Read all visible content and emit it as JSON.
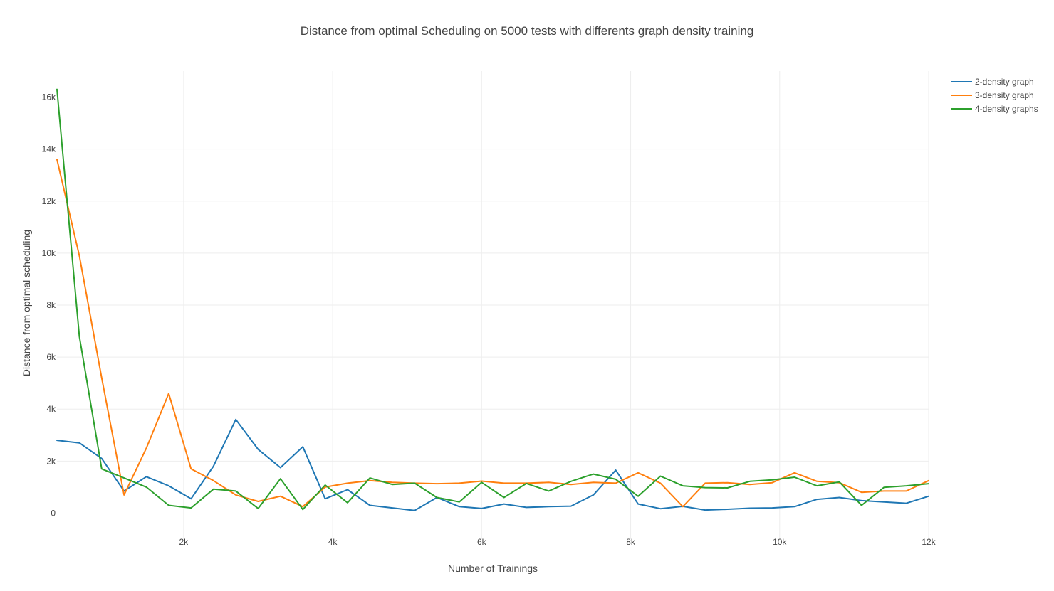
{
  "chart_data": {
    "type": "line",
    "title": "Distance from optimal Scheduling on 5000 tests with differents graph density training",
    "xlabel": "Number of Trainings",
    "ylabel": "Distance from optimal scheduling",
    "xlim": [
      300,
      12000
    ],
    "ylim": [
      -1000,
      17000
    ],
    "xticks": [
      2000,
      4000,
      6000,
      8000,
      10000,
      12000
    ],
    "xtick_labels": [
      "2k",
      "4k",
      "6k",
      "8k",
      "10k",
      "12k"
    ],
    "yticks": [
      0,
      2000,
      4000,
      6000,
      8000,
      10000,
      12000,
      14000,
      16000
    ],
    "ytick_labels": [
      "0",
      "2k",
      "4k",
      "6k",
      "8k",
      "10k",
      "12k",
      "14k",
      "16k"
    ],
    "grid": true,
    "legend_position": "top-right",
    "x": [
      300,
      600,
      900,
      1200,
      1500,
      1800,
      2100,
      2400,
      2700,
      3000,
      3300,
      3600,
      3900,
      4200,
      4500,
      4800,
      5100,
      5400,
      5700,
      6000,
      6300,
      6600,
      6900,
      7200,
      7500,
      7800,
      8100,
      8400,
      8700,
      9000,
      9300,
      9600,
      9900,
      10200,
      10500,
      10800,
      11100,
      11400,
      11700,
      12000
    ],
    "series": [
      {
        "name": "2-density graph",
        "color": "#1f77b4",
        "values": [
          2800,
          2700,
          2100,
          850,
          1400,
          1050,
          550,
          1800,
          3600,
          2450,
          1750,
          2550,
          550,
          900,
          300,
          200,
          100,
          600,
          250,
          180,
          350,
          220,
          250,
          270,
          700,
          1650,
          350,
          170,
          260,
          120,
          150,
          190,
          200,
          250,
          530,
          600,
          480,
          430,
          380,
          650
        ]
      },
      {
        "name": "3-density graph",
        "color": "#ff7f0e",
        "values": [
          13600,
          9900,
          5200,
          700,
          2500,
          4600,
          1700,
          1250,
          700,
          450,
          650,
          250,
          1000,
          1150,
          1250,
          1180,
          1150,
          1130,
          1150,
          1230,
          1150,
          1150,
          1180,
          1100,
          1180,
          1150,
          1550,
          1150,
          250,
          1150,
          1170,
          1100,
          1170,
          1550,
          1220,
          1170,
          800,
          850,
          850,
          1250
        ]
      },
      {
        "name": "4-density graphs",
        "color": "#2ca02c",
        "values": [
          16300,
          6800,
          1700,
          1350,
          1000,
          300,
          200,
          920,
          850,
          180,
          1320,
          140,
          1080,
          400,
          1350,
          1100,
          1150,
          600,
          430,
          1180,
          600,
          1140,
          850,
          1220,
          1500,
          1300,
          650,
          1420,
          1050,
          980,
          970,
          1220,
          1280,
          1380,
          1050,
          1200,
          300,
          990,
          1050,
          1130
        ]
      }
    ]
  }
}
